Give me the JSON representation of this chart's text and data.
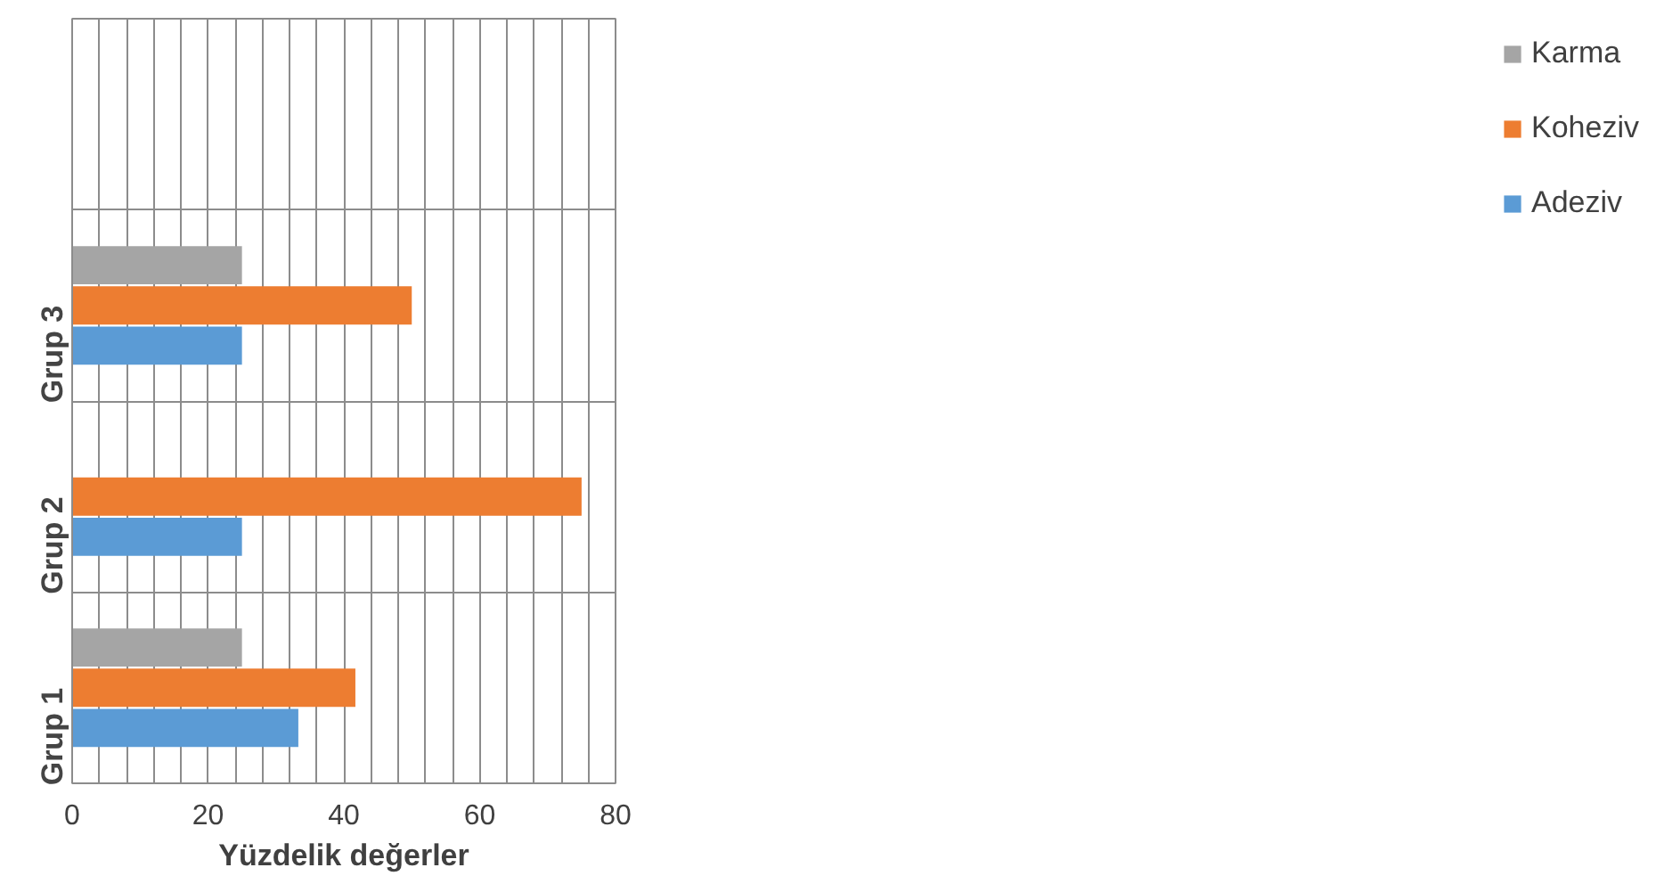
{
  "chart_data": {
    "type": "bar",
    "orientation": "horizontal",
    "xlabel": "Yüzdelik değerler",
    "categories": [
      null,
      "Grup 3",
      "Grup 2",
      "Grup 1"
    ],
    "series": [
      {
        "name": "Adeziv",
        "color": "#5b9bd5",
        "values": [
          null,
          25,
          25,
          33.3
        ]
      },
      {
        "name": "Koheziv",
        "color": "#ed7d31",
        "values": [
          null,
          50,
          75,
          41.7
        ]
      },
      {
        "name": "Karma",
        "color": "#a5a5a5",
        "values": [
          null,
          25,
          0,
          25
        ]
      }
    ],
    "xlim": [
      0,
      80
    ],
    "xticks": [
      0,
      {
        "value": 4,
        "label": null
      },
      {
        "value": 8,
        "label": null
      },
      {
        "value": 12,
        "label": null
      },
      {
        "value": 16,
        "label": null
      },
      20,
      {
        "value": 24,
        "label": null
      },
      {
        "value": 28,
        "label": null
      },
      {
        "value": 32,
        "label": null
      },
      {
        "value": 36,
        "label": null
      },
      40,
      {
        "value": 44,
        "label": null
      },
      {
        "value": 48,
        "label": null
      },
      {
        "value": 52,
        "label": null
      },
      {
        "value": 56,
        "label": null
      },
      60,
      {
        "value": 64,
        "label": null
      },
      {
        "value": 68,
        "label": null
      },
      {
        "value": 72,
        "label": null
      },
      {
        "value": 76,
        "label": null
      },
      80
    ],
    "grid": true,
    "legend": "right"
  }
}
